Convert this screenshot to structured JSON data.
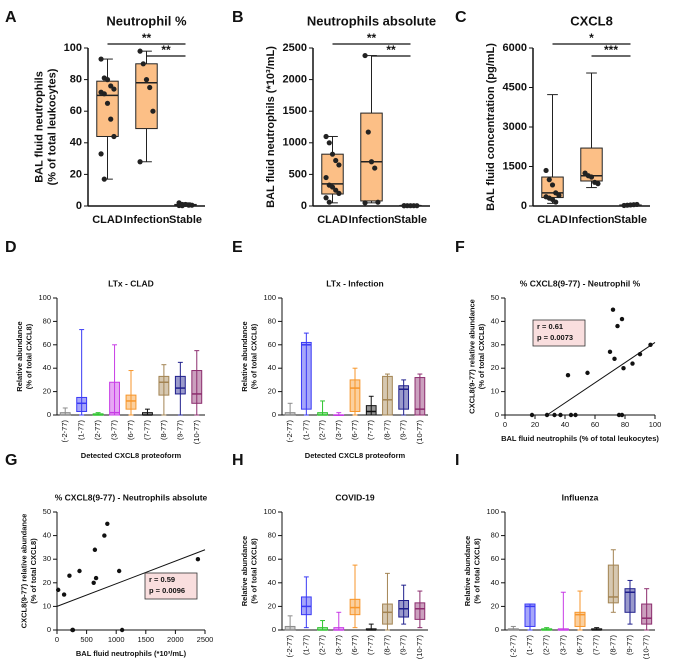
{
  "chart_data": [
    {
      "type": "box",
      "panel": "A",
      "title": "Neutrophil %",
      "ylabel": [
        "BAL fluid neutrophils",
        "(% of total leukocytes)"
      ],
      "categories": [
        "CLAD",
        "Infection",
        "Stable"
      ],
      "ylim": [
        0,
        100
      ],
      "yticks": [
        0,
        20,
        40,
        60,
        80,
        100
      ],
      "colors": [
        "#fcbf86",
        "#fcbf86",
        "#fcbf86"
      ],
      "box_stroke": "#222222",
      "boxes": [
        {
          "min": 17,
          "q1": 44,
          "median": 70,
          "q3": 79,
          "max": 93
        },
        {
          "min": 28,
          "q1": 49,
          "median": 78,
          "q3": 90,
          "max": 98
        },
        {
          "min": 0,
          "q1": 0.3,
          "median": 0.6,
          "q3": 1,
          "max": 2
        }
      ],
      "points": [
        [
          93,
          81,
          80,
          76,
          74,
          72,
          71,
          65,
          55,
          44,
          33,
          17
        ],
        [
          98,
          90,
          80,
          75,
          60,
          28
        ],
        [
          2,
          1,
          1,
          0.5,
          0.5,
          0.3,
          0.2
        ]
      ],
      "significance": [
        {
          "from": 0,
          "to": 2,
          "label": "**"
        },
        {
          "from": 1,
          "to": 2,
          "label": "**"
        }
      ]
    },
    {
      "type": "box",
      "panel": "B",
      "title": "Neutrophils absolute",
      "ylabel": [
        "BAL fluid neutrophils (*10³/mL)"
      ],
      "categories": [
        "CLAD",
        "Infection",
        "Stable"
      ],
      "ylim": [
        0,
        2500
      ],
      "yticks": [
        0,
        500,
        1000,
        1500,
        2000,
        2500
      ],
      "colors": [
        "#fcbf86",
        "#fcbf86",
        "#fcbf86"
      ],
      "box_stroke": "#222222",
      "boxes": [
        {
          "min": 50,
          "q1": 190,
          "median": 350,
          "q3": 820,
          "max": 1100
        },
        {
          "min": 50,
          "q1": 80,
          "median": 700,
          "q3": 1470,
          "max": 2380
        },
        {
          "min": 0,
          "q1": 2,
          "median": 5,
          "q3": 8,
          "max": 20
        }
      ],
      "points": [
        [
          1100,
          1000,
          820,
          720,
          650,
          450,
          330,
          300,
          250,
          200,
          130,
          60
        ],
        [
          2380,
          1170,
          700,
          600,
          60,
          50
        ],
        [
          5,
          5,
          5,
          5,
          5,
          5
        ]
      ],
      "significance": [
        {
          "from": 0,
          "to": 2,
          "label": "**"
        },
        {
          "from": 1,
          "to": 2,
          "label": "**"
        }
      ]
    },
    {
      "type": "box",
      "panel": "C",
      "title": "CXCL8",
      "ylabel": [
        "BAL fluid concentration (pg/mL)"
      ],
      "categories": [
        "CLAD",
        "Infection",
        "Stable"
      ],
      "ylim": [
        0,
        6000
      ],
      "yticks": [
        0,
        1500,
        3000,
        4500,
        6000
      ],
      "colors": [
        "#fcbf86",
        "#fcbf86",
        "#fcbf86"
      ],
      "box_stroke": "#222222",
      "boxes": [
        {
          "min": 100,
          "q1": 320,
          "median": 500,
          "q3": 1100,
          "max": 4230
        },
        {
          "min": 700,
          "q1": 950,
          "median": 1150,
          "q3": 2200,
          "max": 5050
        },
        {
          "min": 0,
          "q1": 10,
          "median": 20,
          "q3": 40,
          "max": 80
        }
      ],
      "points": [
        [
          1350,
          1000,
          800,
          500,
          400,
          350,
          300,
          250,
          150
        ],
        [
          1250,
          1150,
          1100,
          900,
          850
        ],
        [
          20,
          30,
          40,
          50,
          60
        ]
      ],
      "significance": [
        {
          "from": 0,
          "to": 2,
          "label": "*"
        },
        {
          "from": 1,
          "to": 2,
          "label": "***"
        }
      ]
    },
    {
      "type": "box",
      "panel": "D",
      "title": "LTx - CLAD",
      "ylabel": [
        "Relative abundance",
        "(% of total CXCL8)"
      ],
      "xlabel": "Detected CXCL8 proteoform",
      "categories": [
        "(-2-77)",
        "(1-77)",
        "(2-77)",
        "(3-77)",
        "(6-77)",
        "(7-77)",
        "(8-77)",
        "(9-77)",
        "(10-77)"
      ],
      "ylim": [
        0,
        100
      ],
      "yticks": [
        0,
        20,
        40,
        60,
        80,
        100
      ],
      "colors": [
        "#8c8c8c",
        "#3a3af5",
        "#2fc42f",
        "#c83ce6",
        "#f7962b",
        "#111111",
        "#a38453",
        "#1f1f8c",
        "#8c2d6e"
      ],
      "boxes": [
        {
          "min": 0,
          "q1": 0,
          "median": 0,
          "q3": 2,
          "max": 6
        },
        {
          "min": 0,
          "q1": 3,
          "median": 10,
          "q3": 15,
          "max": 73
        },
        {
          "min": 0,
          "q1": 0,
          "median": 0,
          "q3": 1,
          "max": 2
        },
        {
          "min": 0,
          "q1": 0,
          "median": 2,
          "q3": 28,
          "max": 60
        },
        {
          "min": 0,
          "q1": 5,
          "median": 12,
          "q3": 17,
          "max": 38
        },
        {
          "min": 0,
          "q1": 0,
          "median": 0,
          "q3": 2,
          "max": 5
        },
        {
          "min": 0,
          "q1": 17,
          "median": 28,
          "q3": 33,
          "max": 43
        },
        {
          "min": 0,
          "q1": 18,
          "median": 23,
          "q3": 33,
          "max": 45
        },
        {
          "min": 0,
          "q1": 10,
          "median": 18,
          "q3": 38,
          "max": 55
        }
      ]
    },
    {
      "type": "box",
      "panel": "E",
      "title": "LTx - Infection",
      "ylabel": [
        "Relative abundance",
        "(% of total CXCL8)"
      ],
      "xlabel": "Detected CXCL8 proteoform",
      "categories": [
        "(-2-77)",
        "(1-77)",
        "(2-77)",
        "(3-77)",
        "(6-77)",
        "(7-77)",
        "(8-77)",
        "(9-77)",
        "(10-77)"
      ],
      "ylim": [
        0,
        100
      ],
      "yticks": [
        0,
        20,
        40,
        60,
        80,
        100
      ],
      "colors": [
        "#8c8c8c",
        "#3a3af5",
        "#2fc42f",
        "#c83ce6",
        "#f7962b",
        "#111111",
        "#a38453",
        "#1f1f8c",
        "#8c2d6e"
      ],
      "boxes": [
        {
          "min": 0,
          "q1": 0,
          "median": 0,
          "q3": 2,
          "max": 10
        },
        {
          "min": 0,
          "q1": 5,
          "median": 60,
          "q3": 62,
          "max": 70
        },
        {
          "min": 0,
          "q1": 0,
          "median": 0,
          "q3": 2,
          "max": 12
        },
        {
          "min": 0,
          "q1": 0,
          "median": 0,
          "q3": 0,
          "max": 2
        },
        {
          "min": 0,
          "q1": 3,
          "median": 23,
          "q3": 30,
          "max": 40
        },
        {
          "min": 0,
          "q1": 0,
          "median": 3,
          "q3": 8,
          "max": 16
        },
        {
          "min": 0,
          "q1": 0,
          "median": 13,
          "q3": 33,
          "max": 35
        },
        {
          "min": 0,
          "q1": 5,
          "median": 22,
          "q3": 25,
          "max": 30
        },
        {
          "min": 0,
          "q1": 0,
          "median": 5,
          "q3": 32,
          "max": 35
        }
      ]
    },
    {
      "type": "scatter",
      "panel": "F",
      "title": "% CXCL8(9-77) - Neutrophil %",
      "ylabel": [
        "CXCL8(9-77) relative abundance",
        "(% of total CXCL8)"
      ],
      "xlabel": "BAL fluid neutrophils (% of total leukocytes)",
      "xlim": [
        0,
        100
      ],
      "xticks": [
        0,
        20,
        40,
        60,
        80,
        100
      ],
      "ylim": [
        0,
        50
      ],
      "yticks": [
        0,
        10,
        20,
        30,
        40,
        50
      ],
      "x": [
        18,
        28,
        33,
        37,
        42,
        44,
        47,
        55,
        70,
        72,
        73,
        75,
        76,
        78,
        78,
        79,
        85,
        90,
        97
      ],
      "y": [
        0,
        0,
        0,
        0,
        17,
        0,
        0,
        18,
        27,
        45,
        24,
        38,
        0,
        0,
        41,
        20,
        22,
        26,
        30
      ],
      "fit": {
        "x": [
          28,
          100
        ],
        "y": [
          0,
          31
        ]
      },
      "annotations": [
        "r = 0.61",
        "p = 0.0073"
      ],
      "annotation_loc": "upper left"
    },
    {
      "type": "scatter",
      "panel": "G",
      "title": "% CXCL8(9-77) - Neutrophils absolute",
      "ylabel": [
        "CXCL8(9-77) relative abundance",
        "(% of total CXCL8)"
      ],
      "xlabel": "BAL fluid neutrophils (*10³/mL)",
      "xlim": [
        0,
        2500
      ],
      "xticks": [
        0,
        500,
        1000,
        1500,
        2000,
        2500
      ],
      "ylim": [
        0,
        50
      ],
      "yticks": [
        0,
        10,
        20,
        30,
        40,
        50
      ],
      "x": [
        20,
        120,
        210,
        260,
        270,
        380,
        620,
        640,
        660,
        800,
        850,
        1050,
        1100,
        2380
      ],
      "y": [
        17,
        15,
        23,
        0,
        0,
        25,
        20,
        34,
        22,
        40,
        45,
        25,
        0,
        30
      ],
      "fit": {
        "x": [
          0,
          2500
        ],
        "y": [
          10,
          34
        ]
      },
      "annotations": [
        "r = 0.59",
        "p = 0.0096"
      ],
      "annotation_loc": "center right"
    },
    {
      "type": "box",
      "panel": "H",
      "title": "COVID-19",
      "ylabel": [
        "Relative abundance",
        "(% of total CXCL8)"
      ],
      "xlabel": "Detected CXCL8 proteoform",
      "categories": [
        "(-2-77)",
        "(1-77)",
        "(2-77)",
        "(3-77)",
        "(6-77)",
        "(7-77)",
        "(8-77)",
        "(9-77)",
        "(10-77)"
      ],
      "ylim": [
        0,
        100
      ],
      "yticks": [
        0,
        20,
        40,
        60,
        80,
        100
      ],
      "colors": [
        "#8c8c8c",
        "#3a3af5",
        "#2fc42f",
        "#c83ce6",
        "#f7962b",
        "#111111",
        "#a38453",
        "#1f1f8c",
        "#8c2d6e"
      ],
      "boxes": [
        {
          "min": 0,
          "q1": 0,
          "median": 0,
          "q3": 3,
          "max": 12
        },
        {
          "min": 2,
          "q1": 13,
          "median": 20,
          "q3": 28,
          "max": 45
        },
        {
          "min": 0,
          "q1": 0,
          "median": 0,
          "q3": 2,
          "max": 8
        },
        {
          "min": 0,
          "q1": 0,
          "median": 0,
          "q3": 2,
          "max": 15
        },
        {
          "min": 2,
          "q1": 13,
          "median": 19,
          "q3": 26,
          "max": 55
        },
        {
          "min": 0,
          "q1": 0,
          "median": 0,
          "q3": 1,
          "max": 5
        },
        {
          "min": 0,
          "q1": 5,
          "median": 15,
          "q3": 22,
          "max": 48
        },
        {
          "min": 5,
          "q1": 11,
          "median": 18,
          "q3": 25,
          "max": 38
        },
        {
          "min": 2,
          "q1": 9,
          "median": 18,
          "q3": 23,
          "max": 33
        }
      ]
    },
    {
      "type": "box",
      "panel": "I",
      "title": "Influenza",
      "ylabel": [
        "Relative abundance",
        "(% of total CXCL8)"
      ],
      "xlabel": "Detected CXCL8 proteoform",
      "categories": [
        "(-2-77)",
        "(1-77)",
        "(2-77)",
        "(3-77)",
        "(6-77)",
        "(7-77)",
        "(8-77)",
        "(9-77)",
        "(10-77)"
      ],
      "ylim": [
        0,
        100
      ],
      "yticks": [
        0,
        20,
        40,
        60,
        80,
        100
      ],
      "colors": [
        "#8c8c8c",
        "#3a3af5",
        "#2fc42f",
        "#c83ce6",
        "#f7962b",
        "#111111",
        "#a38453",
        "#1f1f8c",
        "#8c2d6e"
      ],
      "boxes": [
        {
          "min": 0,
          "q1": 0,
          "median": 0,
          "q3": 1,
          "max": 3
        },
        {
          "min": 0,
          "q1": 3,
          "median": 20,
          "q3": 22,
          "max": 22
        },
        {
          "min": 0,
          "q1": 0,
          "median": 0,
          "q3": 1,
          "max": 2
        },
        {
          "min": 0,
          "q1": 0,
          "median": 0,
          "q3": 1,
          "max": 32
        },
        {
          "min": 0,
          "q1": 3,
          "median": 13,
          "q3": 15,
          "max": 33
        },
        {
          "min": 0,
          "q1": 0,
          "median": 0,
          "q3": 1,
          "max": 2
        },
        {
          "min": 15,
          "q1": 23,
          "median": 28,
          "q3": 55,
          "max": 68
        },
        {
          "min": 5,
          "q1": 15,
          "median": 32,
          "q3": 35,
          "max": 42
        },
        {
          "min": 0,
          "q1": 5,
          "median": 10,
          "q3": 22,
          "max": 35
        }
      ]
    }
  ]
}
